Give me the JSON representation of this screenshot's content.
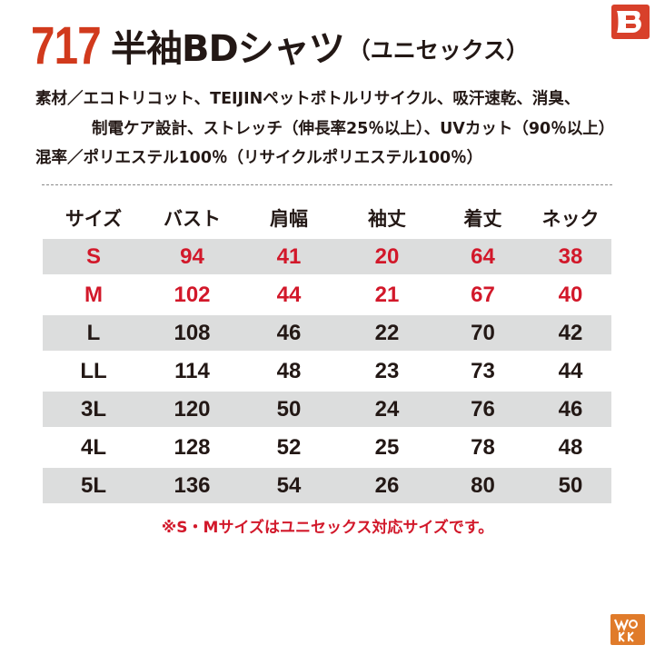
{
  "product": {
    "number": "717",
    "name": "半袖BDシャツ",
    "subtitle": "（ユニセックス）"
  },
  "spec": {
    "material_line1": "素材／エコトリコット、TEIJINペットボトルリサイクル、吸汗速乾、消臭、",
    "material_line2": "制電ケア設計、ストレッチ（伸長率25％以上）、UVカット（90％以上）",
    "blend": "混率／ポリエステル100％（リサイクルポリエステル100％）"
  },
  "size_table": {
    "headers": [
      "サイズ",
      "バスト",
      "肩幅",
      "袖丈",
      "着丈",
      "ネック"
    ],
    "rows": [
      [
        "S",
        "94",
        "41",
        "20",
        "64",
        "38"
      ],
      [
        "M",
        "102",
        "44",
        "21",
        "67",
        "40"
      ],
      [
        "L",
        "108",
        "46",
        "22",
        "70",
        "42"
      ],
      [
        "LL",
        "114",
        "48",
        "23",
        "73",
        "44"
      ],
      [
        "3L",
        "120",
        "50",
        "24",
        "76",
        "46"
      ],
      [
        "4L",
        "128",
        "52",
        "25",
        "78",
        "48"
      ],
      [
        "5L",
        "136",
        "54",
        "26",
        "80",
        "50"
      ]
    ]
  },
  "note": "※S・Mサイズはユニセックス対応サイズです。",
  "colors": {
    "accent_red": "#d2182a",
    "title_red": "#d13a1d",
    "row_shade": "#dcdddd",
    "text": "#231815"
  },
  "icons": {
    "logo": "brand-b-logo",
    "badge": "work-badge-icon"
  }
}
